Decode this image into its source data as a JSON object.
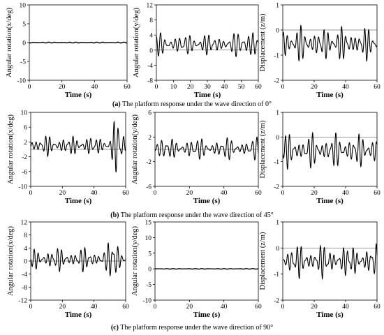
{
  "captions": [
    {
      "letter": "(a)",
      "text": " The platform response under the wave direction of 0°"
    },
    {
      "letter": "(b)",
      "text": " The platform response under the wave direction of 45°"
    },
    {
      "letter": "(c)",
      "text": " The platform response under the wave direction of 90°"
    }
  ],
  "colors": {
    "line": "#000000",
    "axis": "#000000",
    "background": "#ffffff"
  },
  "chart_data": [
    {
      "type": "line",
      "row": "a",
      "ylabel": "Angular rotation(x/deg)",
      "xlabel": "Time (s)",
      "xlim": [
        0,
        60
      ],
      "ylim": [
        -10,
        10
      ],
      "xticks": [
        0,
        20,
        40,
        60
      ],
      "yticks": [
        -10,
        -5,
        0,
        5,
        10
      ],
      "signal": {
        "kind": "flat",
        "amp": 0.12,
        "mean": 0,
        "seed": 1
      }
    },
    {
      "type": "line",
      "row": "a",
      "ylabel": "Angular rotation(y/deg)",
      "xlabel": "Time (s)",
      "xlim": [
        0,
        60
      ],
      "ylim": [
        -8,
        12
      ],
      "xticks": [
        0,
        10,
        20,
        30,
        40,
        50,
        60
      ],
      "yticks": [
        -8,
        -4,
        0,
        4,
        8,
        12
      ],
      "signal": {
        "kind": "osc",
        "amp": 2.8,
        "mean": 1.5,
        "seed": 2,
        "bursts": [
          [
            50,
            60,
            2.5
          ]
        ]
      }
    },
    {
      "type": "line",
      "row": "a",
      "ylabel": "Displacement (z/m)",
      "xlabel": "Time (s)",
      "xlim": [
        0,
        60
      ],
      "ylim": [
        -2,
        1
      ],
      "xticks": [
        0,
        20,
        40,
        60
      ],
      "yticks": [
        -2,
        -1,
        0,
        1
      ],
      "signal": {
        "kind": "osc",
        "amp": 0.65,
        "mean": -0.55,
        "seed": 3
      }
    },
    {
      "type": "line",
      "row": "b",
      "ylabel": "Angular rotation(x/deg)",
      "xlabel": "Time (s)",
      "xlim": [
        0,
        60
      ],
      "ylim": [
        -10,
        10
      ],
      "xticks": [
        0,
        20,
        40,
        60
      ],
      "yticks": [
        -10,
        -6,
        -2,
        2,
        6,
        10
      ],
      "signal": {
        "kind": "osc",
        "amp": 2.6,
        "mean": 1.0,
        "seed": 4,
        "bursts": [
          [
            50,
            60,
            3.0
          ]
        ]
      }
    },
    {
      "type": "line",
      "row": "b",
      "ylabel": "Angular rotation(y/deg)",
      "xlabel": "Time (s)",
      "xlim": [
        0,
        60
      ],
      "ylim": [
        -6,
        6
      ],
      "xticks": [
        0,
        20,
        40,
        60
      ],
      "yticks": [
        -6,
        -2,
        2,
        6
      ],
      "signal": {
        "kind": "osc",
        "amp": 1.7,
        "mean": 0.1,
        "seed": 5
      }
    },
    {
      "type": "line",
      "row": "b",
      "ylabel": "Displacement (z/m)",
      "xlabel": "Time (s)",
      "xlim": [
        0,
        60
      ],
      "ylim": [
        -2,
        1
      ],
      "xticks": [
        0,
        20,
        40,
        60
      ],
      "yticks": [
        -2,
        -1,
        0,
        1
      ],
      "signal": {
        "kind": "osc",
        "amp": 0.65,
        "mean": -0.55,
        "seed": 6
      }
    },
    {
      "type": "line",
      "row": "c",
      "ylabel": "Angular rotation(x/deg)",
      "xlabel": "Time (s)",
      "xlim": [
        0,
        60
      ],
      "ylim": [
        -12,
        12
      ],
      "xticks": [
        0,
        20,
        40,
        60
      ],
      "yticks": [
        -12,
        -8,
        -4,
        0,
        4,
        8,
        12
      ],
      "signal": {
        "kind": "osc",
        "amp": 3.4,
        "mean": 0.5,
        "seed": 7,
        "bursts": [
          [
            48,
            58,
            2.2
          ]
        ]
      }
    },
    {
      "type": "line",
      "row": "c",
      "ylabel": "Angular rotation(y/deg)",
      "xlabel": "Time (s)",
      "xlim": [
        0,
        60
      ],
      "ylim": [
        -10,
        15
      ],
      "xticks": [
        0,
        20,
        40,
        60
      ],
      "yticks": [
        -10,
        -5,
        0,
        5,
        10,
        15
      ],
      "signal": {
        "kind": "flat",
        "amp": 0.1,
        "mean": 0,
        "seed": 8
      }
    },
    {
      "type": "line",
      "row": "c",
      "ylabel": "Displacement (z/m)",
      "xlabel": "Time (s)",
      "xlim": [
        0,
        60
      ],
      "ylim": [
        -2,
        1
      ],
      "xticks": [
        0,
        20,
        40,
        60
      ],
      "yticks": [
        -2,
        -1,
        0,
        1
      ],
      "signal": {
        "kind": "osc",
        "amp": 0.6,
        "mean": -0.5,
        "seed": 9
      }
    }
  ]
}
